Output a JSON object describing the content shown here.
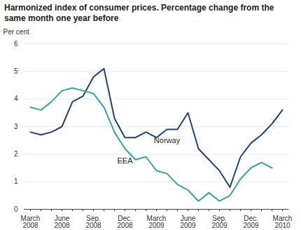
{
  "chart_data": {
    "type": "line",
    "title": "Harmonized index of consumer prices. Percentage change from the same month one year before",
    "y_label": "Per cent",
    "categories": [
      "March 2008",
      null,
      null,
      "June 2008",
      null,
      null,
      "Sep. 2008",
      null,
      null,
      "Dec. 2008",
      null,
      null,
      "March 2009",
      null,
      null,
      "June 2009",
      null,
      null,
      "Sep. 2009",
      null,
      null,
      "Dec. 2009",
      null,
      null,
      "March 2010"
    ],
    "series": [
      {
        "name": "Norway",
        "color": "#1f3f80",
        "values": [
          2.8,
          2.7,
          2.8,
          3.0,
          3.9,
          4.1,
          4.8,
          5.1,
          3.3,
          2.6,
          2.6,
          2.8,
          2.6,
          2.9,
          2.9,
          3.5,
          2.2,
          1.8,
          1.4,
          0.8,
          1.9,
          2.4,
          2.7,
          3.1,
          3.6
        ]
      },
      {
        "name": "EEA",
        "color": "#33a59c",
        "values": [
          3.7,
          3.6,
          3.9,
          4.3,
          4.4,
          4.3,
          4.2,
          3.7,
          2.8,
          2.2,
          1.8,
          1.9,
          1.4,
          1.3,
          0.9,
          0.7,
          0.3,
          0.6,
          0.3,
          0.5,
          1.1,
          1.5,
          1.7,
          1.5,
          null
        ]
      }
    ],
    "ylim": [
      0,
      6
    ],
    "yticks": [
      0,
      1,
      2,
      3,
      4,
      5,
      6
    ],
    "grid": true
  }
}
